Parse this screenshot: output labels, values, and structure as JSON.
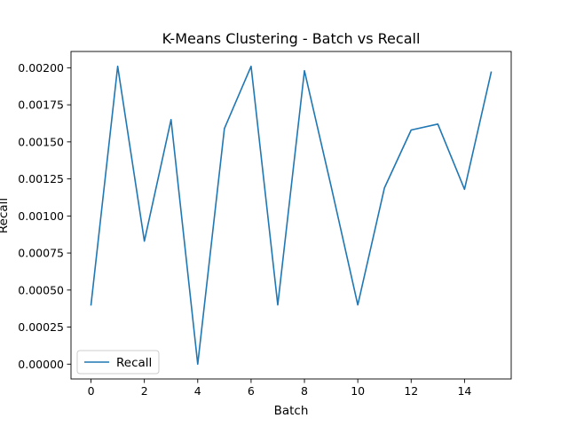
{
  "chart_data": {
    "type": "line",
    "title": "K-Means Clustering - Batch vs Recall",
    "xlabel": "Batch",
    "ylabel": "Recall",
    "x": [
      0,
      1,
      2,
      3,
      4,
      5,
      6,
      7,
      8,
      9,
      10,
      11,
      12,
      13,
      14,
      15
    ],
    "series": [
      {
        "name": "Recall",
        "color": "#1f77b4",
        "values": [
          0.0004,
          0.00201,
          0.00083,
          0.00165,
          0.0,
          0.00159,
          0.00201,
          0.0004,
          0.00198,
          0.0012,
          0.0004,
          0.00119,
          0.00158,
          0.00162,
          0.00118,
          0.00197
        ]
      }
    ],
    "xlim": [
      -0.75,
      15.75
    ],
    "ylim": [
      -0.0001,
      0.00211
    ],
    "xticks": [
      0,
      2,
      4,
      6,
      8,
      10,
      12,
      14
    ],
    "xtick_labels": [
      "0",
      "2",
      "4",
      "6",
      "8",
      "10",
      "12",
      "14"
    ],
    "yticks": [
      0,
      0.00025,
      0.0005,
      0.00075,
      0.001,
      0.00125,
      0.0015,
      0.00175,
      0.002
    ],
    "ytick_labels": [
      "0.00000",
      "0.00025",
      "0.00050",
      "0.00075",
      "0.00100",
      "0.00125",
      "0.00150",
      "0.00175",
      "0.00200"
    ],
    "grid": false,
    "legend_position": "lower-left"
  }
}
